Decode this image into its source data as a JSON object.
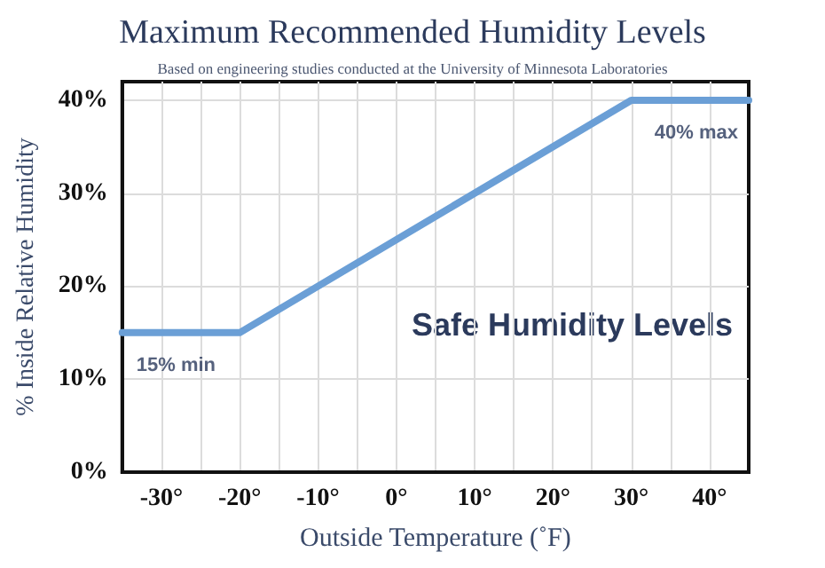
{
  "chart_data": {
    "type": "line",
    "title": "Maximum Recommended Humidity Levels",
    "subtitle": "Based on engineering studies conducted at the University of Minnesota Laboratories",
    "xlabel": "Outside Temperature (˚F)",
    "ylabel": "% Inside Relative Humidity",
    "annotations": [
      {
        "text": "15% min",
        "x": -35,
        "y": 15
      },
      {
        "text": "40% max",
        "x": 45,
        "y": 40
      },
      "Safe Humidity Levels"
    ],
    "series": [
      {
        "color": "#6b9fd6",
        "x": [
          -35,
          -20,
          30,
          45
        ],
        "values": [
          15,
          15,
          40,
          40
        ]
      }
    ],
    "xlim": [
      -35,
      45
    ],
    "xticks": [
      {
        "value": -30,
        "label": "-30°"
      },
      {
        "value": -25,
        "label": null
      },
      {
        "value": -20,
        "label": "-20°"
      },
      {
        "value": -15,
        "label": null
      },
      {
        "value": -10,
        "label": "-10°"
      },
      {
        "value": -5,
        "label": null
      },
      {
        "value": 0,
        "label": "0°"
      },
      {
        "value": 5,
        "label": null
      },
      {
        "value": 10,
        "label": "10°"
      },
      {
        "value": 15,
        "label": null
      },
      {
        "value": 20,
        "label": "20°"
      },
      {
        "value": 25,
        "label": null
      },
      {
        "value": 30,
        "label": "30°"
      },
      {
        "value": 35,
        "label": null
      },
      {
        "value": 40,
        "label": "40°"
      }
    ],
    "ylim": [
      0,
      42
    ],
    "yticks": [
      {
        "value": 0,
        "label": "0%"
      },
      {
        "value": 10,
        "label": "10%"
      },
      {
        "value": 20,
        "label": "20%"
      },
      {
        "value": 30,
        "label": "30%"
      },
      {
        "value": 40,
        "label": "40%"
      }
    ],
    "grid": true,
    "marker": "none",
    "line_style": "solid"
  }
}
